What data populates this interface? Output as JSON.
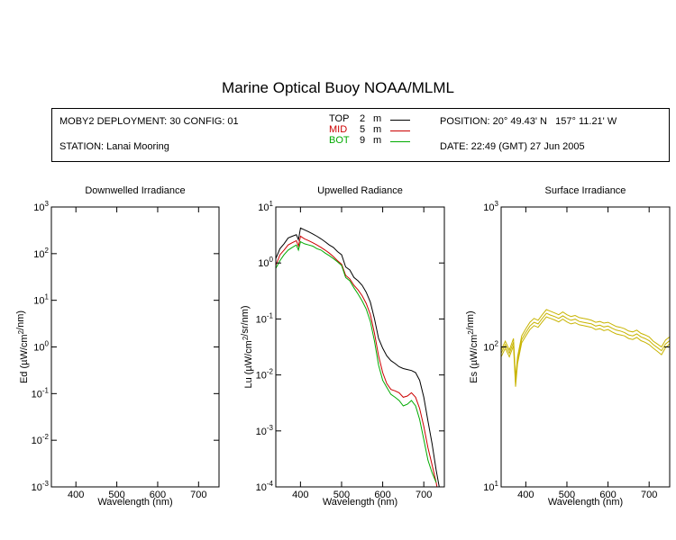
{
  "header": {
    "title": "Marine Optical Buoy NOAA/MLML",
    "deployment": "MOBY2 DEPLOYMENT: 30 CONFIG: 01",
    "station": "STATION: Lanai Mooring",
    "position": "POSITION: 20° 49.43' N   157° 11.21' W",
    "date": "DATE: 22:49 (GMT) 27 Jun 2005",
    "depths": [
      {
        "label": "TOP",
        "depth": "2",
        "unit": "m",
        "color": "#000000"
      },
      {
        "label": "MID",
        "depth": "5",
        "unit": "m",
        "color": "#cc0000"
      },
      {
        "label": "BOT",
        "depth": "9",
        "unit": "m",
        "color": "#00aa00"
      }
    ]
  },
  "chart_data": [
    {
      "type": "line",
      "title": "Downwelled Irradiance",
      "xlabel": "Wavelength (nm)",
      "ylabel": "Ed  (µW/cm²/nm)",
      "xlim": [
        340,
        750
      ],
      "ylim": [
        0.001,
        1000
      ],
      "yscale": "log",
      "xticks": [
        "400",
        "500",
        "600",
        "700"
      ],
      "yticks": [
        {
          "base": "10",
          "exp": "3"
        },
        {
          "base": "10",
          "exp": "2"
        },
        {
          "base": "10",
          "exp": "1"
        },
        {
          "base": "10",
          "exp": "0"
        },
        {
          "base": "10",
          "exp": "-1"
        },
        {
          "base": "10",
          "exp": "-2"
        },
        {
          "base": "10",
          "exp": "-3"
        }
      ],
      "series": []
    },
    {
      "type": "line",
      "title": "Upwelled Radiance",
      "xlabel": "Wavelength (nm)",
      "ylabel": "Lu  (µW/cm²/sr/nm)",
      "xlim": [
        340,
        750
      ],
      "ylim": [
        0.0001,
        10
      ],
      "yscale": "log",
      "xticks": [
        "400",
        "500",
        "600",
        "700"
      ],
      "yticks": [
        {
          "base": "10",
          "exp": "1"
        },
        {
          "base": "10",
          "exp": "0"
        },
        {
          "base": "10",
          "exp": "-1"
        },
        {
          "base": "10",
          "exp": "-2"
        },
        {
          "base": "10",
          "exp": "-3"
        },
        {
          "base": "10",
          "exp": "-4"
        }
      ],
      "series": [
        {
          "color": "#000000",
          "x": [
            340,
            350,
            360,
            370,
            380,
            390,
            395,
            400,
            410,
            420,
            430,
            440,
            450,
            460,
            470,
            480,
            490,
            500,
            510,
            520,
            530,
            540,
            550,
            560,
            570,
            580,
            590,
            600,
            610,
            620,
            630,
            640,
            650,
            660,
            670,
            680,
            690,
            700,
            710,
            720,
            730,
            740
          ],
          "y": [
            1.2,
            1.8,
            2.2,
            2.8,
            3.0,
            3.2,
            2.6,
            4.2,
            3.9,
            3.6,
            3.3,
            3.0,
            2.7,
            2.4,
            2.1,
            1.9,
            1.6,
            1.4,
            0.85,
            0.75,
            0.55,
            0.48,
            0.4,
            0.3,
            0.2,
            0.1,
            0.045,
            0.03,
            0.022,
            0.018,
            0.016,
            0.014,
            0.013,
            0.0125,
            0.012,
            0.011,
            0.008,
            0.004,
            0.0015,
            0.0006,
            0.0002,
            8e-05
          ]
        },
        {
          "color": "#cc0000",
          "x": [
            340,
            350,
            360,
            370,
            380,
            390,
            395,
            400,
            410,
            420,
            430,
            440,
            450,
            460,
            470,
            480,
            490,
            500,
            510,
            520,
            530,
            540,
            550,
            560,
            570,
            580,
            590,
            600,
            610,
            620,
            630,
            640,
            650,
            660,
            670,
            680,
            690,
            700,
            710,
            720,
            730,
            740
          ],
          "y": [
            0.9,
            1.4,
            1.7,
            2.1,
            2.3,
            2.5,
            2.0,
            3.0,
            2.7,
            2.5,
            2.3,
            2.1,
            1.9,
            1.7,
            1.5,
            1.3,
            1.1,
            0.95,
            0.6,
            0.52,
            0.4,
            0.33,
            0.26,
            0.19,
            0.12,
            0.055,
            0.022,
            0.011,
            0.007,
            0.0055,
            0.0052,
            0.0048,
            0.004,
            0.0042,
            0.0048,
            0.004,
            0.0025,
            0.0012,
            0.0005,
            0.00025,
            0.00012,
            5e-05
          ]
        },
        {
          "color": "#00aa00",
          "x": [
            340,
            350,
            360,
            370,
            380,
            390,
            395,
            400,
            410,
            420,
            430,
            440,
            450,
            460,
            470,
            480,
            490,
            500,
            510,
            520,
            530,
            540,
            550,
            560,
            570,
            580,
            590,
            600,
            610,
            620,
            630,
            640,
            650,
            660,
            670,
            680,
            690,
            700,
            710,
            720,
            730
          ],
          "y": [
            0.8,
            1.1,
            1.4,
            1.7,
            1.9,
            2.1,
            1.7,
            2.4,
            2.2,
            2.1,
            2.0,
            1.8,
            1.7,
            1.5,
            1.35,
            1.2,
            1.05,
            0.9,
            0.55,
            0.48,
            0.36,
            0.28,
            0.21,
            0.15,
            0.09,
            0.04,
            0.015,
            0.008,
            0.006,
            0.0045,
            0.004,
            0.0035,
            0.0028,
            0.003,
            0.0035,
            0.0028,
            0.0016,
            0.0007,
            0.0003,
            0.00018,
            0.00012
          ]
        }
      ]
    },
    {
      "type": "line",
      "title": "Surface Irradiance",
      "xlabel": "Wavelength (nm)",
      "ylabel": "Es  (µW/cm²/nm)",
      "xlim": [
        340,
        750
      ],
      "ylim": [
        10,
        1000
      ],
      "yscale": "log",
      "xticks": [
        "400",
        "500",
        "600",
        "700"
      ],
      "yticks": [
        {
          "base": "10",
          "exp": "3"
        },
        {
          "base": "10",
          "exp": "2"
        },
        {
          "base": "10",
          "exp": "1"
        }
      ],
      "series": [
        {
          "color": "#c8b400",
          "x": [
            340,
            350,
            360,
            370,
            375,
            380,
            390,
            400,
            410,
            420,
            430,
            440,
            450,
            460,
            470,
            480,
            490,
            500,
            510,
            520,
            530,
            540,
            550,
            560,
            570,
            580,
            590,
            600,
            610,
            620,
            630,
            640,
            650,
            660,
            670,
            680,
            690,
            700,
            710,
            720,
            730,
            740,
            750
          ],
          "y": [
            95,
            110,
            95,
            115,
            60,
            85,
            120,
            135,
            150,
            160,
            155,
            170,
            185,
            180,
            175,
            170,
            178,
            170,
            165,
            168,
            162,
            160,
            158,
            155,
            150,
            152,
            148,
            150,
            145,
            140,
            138,
            135,
            130,
            128,
            132,
            125,
            122,
            118,
            110,
            105,
            100,
            112,
            118
          ]
        },
        {
          "color": "#c8b400",
          "x": [
            340,
            350,
            360,
            370,
            375,
            380,
            390,
            400,
            410,
            420,
            430,
            440,
            450,
            460,
            470,
            480,
            490,
            500,
            510,
            520,
            530,
            540,
            550,
            560,
            570,
            580,
            590,
            600,
            610,
            620,
            630,
            640,
            650,
            660,
            670,
            680,
            690,
            700,
            710,
            720,
            730,
            740,
            750
          ],
          "y": [
            90,
            104,
            90,
            108,
            56,
            80,
            113,
            127,
            141,
            150,
            146,
            160,
            174,
            169,
            165,
            160,
            167,
            160,
            155,
            158,
            152,
            150,
            148,
            146,
            141,
            143,
            139,
            141,
            136,
            132,
            130,
            127,
            122,
            120,
            124,
            118,
            115,
            111,
            104,
            99,
            94,
            105,
            111
          ]
        },
        {
          "color": "#c8b400",
          "x": [
            340,
            350,
            360,
            370,
            375,
            380,
            390,
            400,
            410,
            420,
            430,
            440,
            450,
            460,
            470,
            480,
            490,
            500,
            510,
            520,
            530,
            540,
            550,
            560,
            570,
            580,
            590,
            600,
            610,
            620,
            630,
            640,
            650,
            660,
            670,
            680,
            690,
            700,
            710,
            720,
            730,
            740,
            750
          ],
          "y": [
            85,
            98,
            85,
            102,
            52,
            76,
            107,
            120,
            133,
            142,
            138,
            151,
            164,
            160,
            156,
            151,
            158,
            151,
            146,
            149,
            144,
            142,
            140,
            138,
            133,
            135,
            131,
            133,
            128,
            124,
            122,
            120,
            115,
            113,
            117,
            111,
            108,
            104,
            98,
            93,
            88,
            99,
            105
          ]
        }
      ]
    }
  ]
}
